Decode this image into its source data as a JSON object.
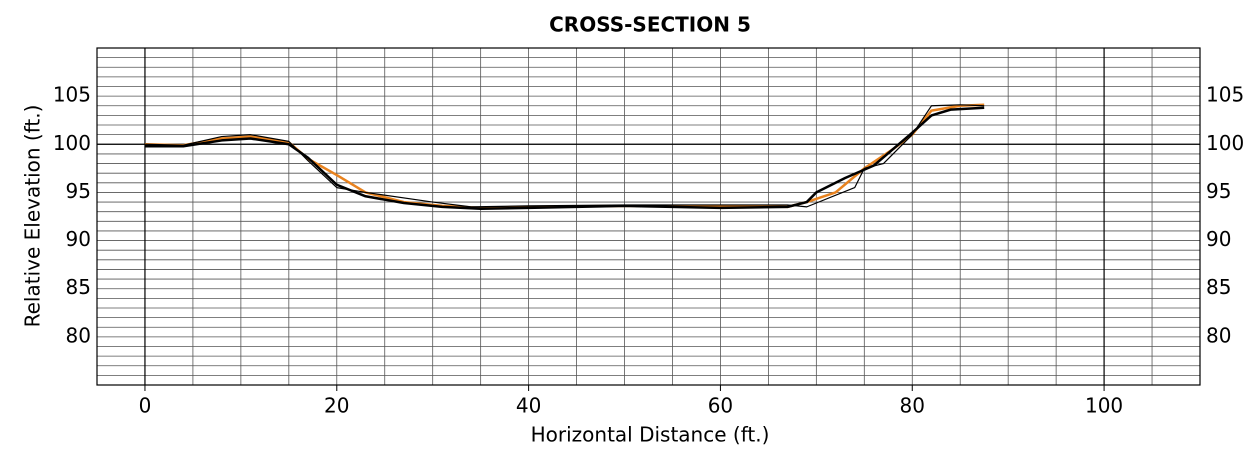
{
  "chart_data": {
    "type": "line",
    "title": "CROSS-SECTION 5",
    "xlabel": "Horizontal Distance (ft.)",
    "ylabel": "Relative Elevation (ft.)",
    "xlim": [
      -5,
      110
    ],
    "xticks": [
      0,
      20,
      40,
      60,
      80,
      100
    ],
    "ylim": [
      75,
      110
    ],
    "yticks": [
      80,
      85,
      90,
      95,
      100,
      105
    ],
    "grid": {
      "x_step": 5,
      "y_step": 1
    },
    "series": [
      {
        "color": "#e8821e",
        "width": 2.5,
        "x": [
          0,
          4,
          8,
          11,
          15,
          17,
          20,
          23,
          27,
          31,
          35,
          40,
          50,
          60,
          67,
          69,
          72,
          75,
          78,
          80,
          82,
          85,
          87.5
        ],
        "values": [
          100,
          99.9,
          100.6,
          100.8,
          100.2,
          98.5,
          96.8,
          95,
          94,
          93.6,
          93.4,
          93.5,
          93.6,
          93.6,
          93.5,
          94,
          95,
          97.5,
          99.5,
          101,
          103.5,
          104,
          104.1
        ]
      },
      {
        "color": "#000000",
        "width": 2.5,
        "x": [
          0,
          4,
          8,
          11,
          15,
          17,
          20,
          23,
          27,
          31,
          35,
          40,
          50,
          60,
          67,
          69,
          70,
          73,
          76,
          78,
          80,
          82,
          84,
          87.5
        ],
        "values": [
          99.8,
          99.8,
          100.4,
          100.6,
          100,
          98.6,
          95.8,
          94.6,
          93.9,
          93.5,
          93.3,
          93.4,
          93.6,
          93.4,
          93.5,
          94,
          95,
          96.5,
          97.8,
          99.5,
          101.2,
          103,
          103.6,
          103.8
        ]
      },
      {
        "color": "#000000",
        "width": 1.2,
        "x": [
          0,
          4,
          8,
          11,
          15,
          17,
          20,
          23,
          30,
          34,
          40,
          50,
          60,
          67,
          69,
          74,
          75,
          77,
          80,
          82,
          85,
          87.5
        ],
        "values": [
          100,
          99.9,
          100.8,
          101,
          100.3,
          98.3,
          95.5,
          95,
          94,
          93.5,
          93.6,
          93.7,
          93.7,
          93.7,
          93.5,
          95.5,
          97.5,
          98,
          101,
          104,
          104.1,
          104
        ]
      }
    ]
  }
}
